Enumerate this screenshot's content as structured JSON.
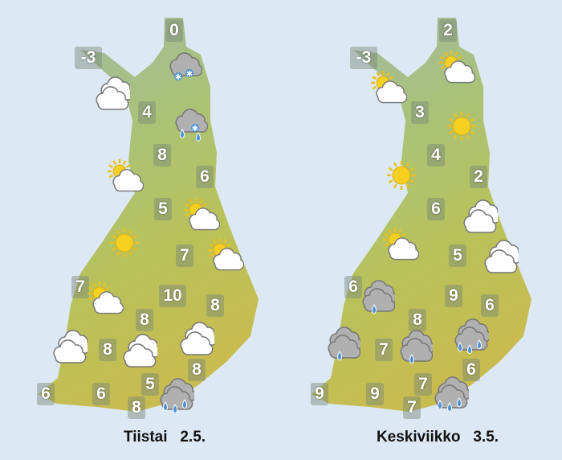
{
  "maps": [
    {
      "day_label": "Tiistai   2.5.",
      "temperatures": [
        "0",
        "-3",
        "4",
        "8",
        "6",
        "5",
        "7",
        "7",
        "10",
        "8",
        "8",
        "8",
        "8",
        "5",
        "6",
        "6",
        "8"
      ],
      "icons": [
        "cloud-snow-icon",
        "cloud-icon",
        "cloud-sleet-icon",
        "sun-cloud-icon",
        "sun-cloud-icon",
        "sun-icon",
        "sun-cloud-icon",
        "sun-cloud-icon",
        "cloud-icon",
        "cloud-icon",
        "cloud-icon",
        "cloud-heavy-rain-icon"
      ]
    },
    {
      "day_label": "Keskiviikko   3.5.",
      "temperatures": [
        "2",
        "-3",
        "3",
        "4",
        "2",
        "6",
        "5",
        "6",
        "9",
        "6",
        "8",
        "7",
        "6",
        "7",
        "9",
        "9",
        "7"
      ],
      "icons": [
        "sun-cloud-icon",
        "sun-cloud-icon",
        "sun-icon",
        "sun-icon",
        "cloud-icon",
        "sun-cloud-icon",
        "cloud-icon",
        "cloud-rain-icon",
        "cloud-rain-icon",
        "cloud-rain-icon",
        "cloud-heavy-rain-icon",
        "cloud-heavy-rain-icon"
      ]
    }
  ],
  "colors": {
    "background": "#dce8f3",
    "land_north": "#9fb8a4",
    "land_mid": "#a8c070",
    "land_south": "#c9b84e",
    "sun": "#f5d020",
    "rain": "#4a90d9"
  }
}
